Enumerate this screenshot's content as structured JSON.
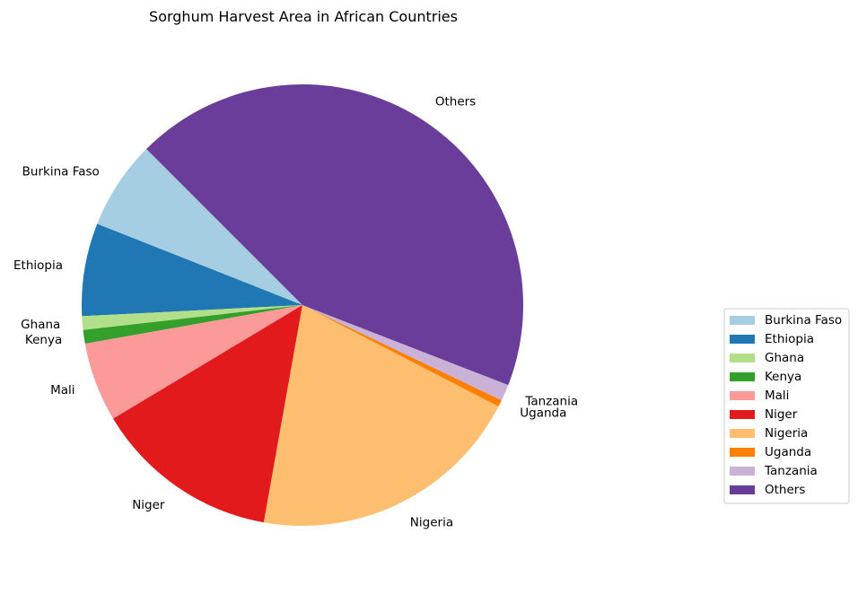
{
  "chart_data": {
    "type": "pie",
    "title": "Sorghum Harvest Area in African Countries",
    "start_angle_deg": 135,
    "direction": "counterclockwise",
    "legend_position": "right",
    "slices": [
      {
        "label": "Burkina Faso",
        "value": 6.5,
        "color": "#a6cee3"
      },
      {
        "label": "Ethiopia",
        "value": 6.8,
        "color": "#1f78b4"
      },
      {
        "label": "Ghana",
        "value": 1.0,
        "color": "#b2df8a"
      },
      {
        "label": "Kenya",
        "value": 1.0,
        "color": "#33a02c"
      },
      {
        "label": "Mali",
        "value": 5.8,
        "color": "#fb9a99"
      },
      {
        "label": "Niger",
        "value": 13.6,
        "color": "#e31a1c"
      },
      {
        "label": "Nigeria",
        "value": 20.2,
        "color": "#fdbf6f"
      },
      {
        "label": "Uganda",
        "value": 0.5,
        "color": "#ff7f00"
      },
      {
        "label": "Tanzania",
        "value": 1.2,
        "color": "#cab2d6"
      },
      {
        "label": "Others",
        "value": 43.4,
        "color": "#6a3d9a"
      }
    ]
  }
}
